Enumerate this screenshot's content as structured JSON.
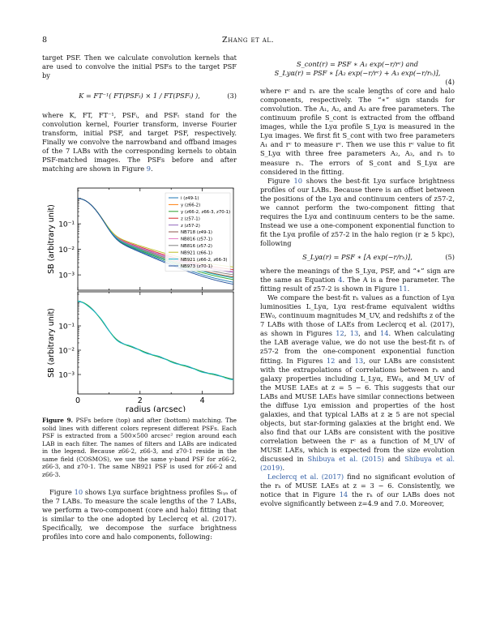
{
  "header": {
    "page_number": "8",
    "running_head": "Zhang et al."
  },
  "left": {
    "p1": "target PSF. Then we calculate convolution kernels that are used to convolve the initial PSFs to the target PSF by",
    "eq3": "K = FT⁻¹( FT(PSFₜ) × 1 / FT(PSFᵢ) ),",
    "eq3_num": "(3)",
    "p2": "where K, FT, FT⁻¹, PSFᵢ, and PSFₜ stand for the convolution kernel, Fourier transform, inverse Fourier transform, initial PSF, and target PSF, respectively. Finally we convolve the narrowband and offband images of the 7 LABs with the corresponding kernels to obtain PSF-matched images. The PSFs before and after matching are shown in Figure ",
    "p2_link": "9",
    "p2_end": ".",
    "caption_label": "Figure 9.",
    "caption_text": " PSFs before (top) and after (bottom) matching. The solid lines with different colors represent different PSFs. Each PSF is extracted from a 500×500 arcsec² region around each LAB in each filter. The names of filters and LABs are indicated in the legend. Because z66-2, z66-3, and z70-1 reside in the same field (COSMOS), we use the same y-band PSF for z66-2, z66-3, and z70-1. The same NB921 PSF is used for z66-2 and z66-3.",
    "p3_a": "Figure ",
    "p3_link": "10",
    "p3_b": " shows Lyα surface brightness profiles Sₗᵧₐ of the 7 LABs. To measure the scale lengths of the 7 LABs, we perform a two-component (core and halo) fitting that is similar to the one adopted by Leclercq et al. (2017). Specifically, we decompose the surface brightness profiles into core and halo components, following:"
  },
  "right": {
    "eq4_line1": "S_cont(r) = PSF ∗ A₁ exp(−r/rᶜ) and",
    "eq4_line2": "S_Lyα(r) = PSF ∗ [A₂ exp(−r/rᶜ) + A₃ exp(−r/rₕ)],",
    "eq4_num": "(4)",
    "p1": "where rᶜ and rₕ are the scale lengths of core and halo components, respectively. The “∗” sign stands for convolution. The A₁, A₂, and A₃ are free parameters. The continuum profile S_cont is extracted from the offband images, while the Lyα profile S_Lyα is measured in the Lyα images. We first fit S_cont with two free parameters A₁ and rᶜ to measure rᶜ. Then we use this rᶜ value to fit S_Lyα with three free parameters A₂, A₃, and rₕ to measure rₕ. The errors of S_cont and S_Lyα are considered in the fitting.",
    "p2_a": "Figure ",
    "p2_link": "10",
    "p2_b": " shows the best-fit Lyα surface brightness profiles of our LABs. Because there is an offset between the positions of the Lyα and continuum centers of z57-2, we cannot perform the two-component fitting that requires the Lyα and continuum centers to be the same. Instead we use a one-component exponential function to fit the Lyα profile of z57-2 in the halo region (r ≳ 5 kpc), following",
    "eq5": "S_Lyα(r) = PSF ∗ [A exp(−r/rₕ)],",
    "eq5_num": "(5)",
    "p3_a": "where the meanings of the S_Lyα, PSF, and “∗” sign are the same as Equation ",
    "p3_link1": "4",
    "p3_b": ". The A is a free parameter. The fitting result of z57-2 is shown in Figure ",
    "p3_link2": "11",
    "p3_c": ".",
    "p4_a": "We compare the best-fit rₕ values as a function of Lyα luminosities L_Lyα, Lyα rest-frame equivalent widths EW₀, continuum magnitudes M_UV, and redshifts z of the 7 LABs with those of LAEs from Leclercq et al. (2017), as shown in Figures ",
    "p4_l1": "12",
    "p4_s1": ", ",
    "p4_l2": "13",
    "p4_s2": ", and ",
    "p4_l3": "14",
    "p4_b": ". When calculating the LAB average value, we do not use the best-fit rₕ of z57-2 from the one-component exponential function fitting. In Figures ",
    "p4_l4": "12",
    "p4_s3": " and ",
    "p4_l5": "13",
    "p4_c": ", our LABs are consistent with the extrapolations of correlations between rₕ and galaxy properties including L_Lyα, EW₀, and M_UV of the MUSE LAEs at z = 5 − 6. This suggests that our LABs and MUSE LAEs have similar connections between the diffuse Lyα emission and properties of the host galaxies, and that typical LABs at z ≳ 5 are not special objects, but star-forming galaxies at the bright end. We also find that our LABs are consistent with the positive correlation between the rᶜ as a function of M_UV of MUSE LAEs, which is expected from the size evolution discussed in ",
    "p4_l6": "Shibuya et al. (2015)",
    "p4_s4": " and ",
    "p4_l7": "Shibuya et al. (2019)",
    "p4_d": ".",
    "p5_l": "Leclercq et al. (2017)",
    "p5_a": " find no significant evolution of the rₕ of MUSE LAEs at z = 3 − 6. Consistently, we notice that in Figure ",
    "p5_l2": "14",
    "p5_b": " the rₕ of our LABs does not evolve significantly between z=4.9 and 7.0. Moreover,"
  },
  "chart_data": [
    {
      "type": "line",
      "panel": "top",
      "xlabel": "",
      "ylabel": "SB (arbitrary unit)",
      "xlim": [
        0,
        5
      ],
      "ylim_log10": [
        -3.6,
        0.4
      ],
      "yscale": "log",
      "yticks": [
        "10⁻¹",
        "10⁻²",
        "10⁻³"
      ],
      "legend_position": "top-right",
      "series": [
        {
          "name": "i (z49-1)",
          "color": "#1f77b4",
          "decay": 1.05,
          "floor": 0.0003
        },
        {
          "name": "y (z66-2)",
          "color": "#ff7f0e",
          "decay": 0.98,
          "floor": 0.0005
        },
        {
          "name": "y (z66-2, z66-3, z70-1)",
          "color": "#2ca02c",
          "decay": 1.02,
          "floor": 0.0004
        },
        {
          "name": "z (z57-1)",
          "color": "#d62728",
          "decay": 0.9,
          "floor": 0.0011
        },
        {
          "name": "z (z57-2)",
          "color": "#9467bd",
          "decay": 0.94,
          "floor": 0.00085
        },
        {
          "name": "NB718 (z49-1)",
          "color": "#8c564b",
          "decay": 1.0,
          "floor": 0.00055
        },
        {
          "name": "NB816 (z57-1)",
          "color": "#e377c2",
          "decay": 0.92,
          "floor": 0.0009
        },
        {
          "name": "NB816 (z57-2)",
          "color": "#7f7f7f",
          "decay": 0.96,
          "floor": 0.00065
        },
        {
          "name": "NB921 (z66-1)",
          "color": "#bcbd22",
          "decay": 0.86,
          "floor": 0.0014
        },
        {
          "name": "NB921 (z66-2, z66-3)",
          "color": "#17becf",
          "decay": 0.99,
          "floor": 0.00045
        },
        {
          "name": "NB973 (z70-1)",
          "color": "#1f4e9a",
          "decay": 1.08,
          "floor": 0.00025
        }
      ]
    },
    {
      "type": "line",
      "panel": "bottom",
      "xlabel": "radius (arcsec)",
      "ylabel": "SB (arbitrary unit)",
      "xlim": [
        0,
        5
      ],
      "xticks": [
        "0",
        "2",
        "4"
      ],
      "ylim_log10": [
        -3.8,
        0.4
      ],
      "yscale": "log",
      "yticks": [
        "10⁻¹",
        "10⁻²",
        "10⁻³"
      ],
      "series": [
        {
          "color": "#1f77b4",
          "decay": 0.97,
          "floor": 0.0003,
          "ripple": 0.0
        },
        {
          "color": "#2ca02c",
          "decay": 0.97,
          "floor": 0.0003,
          "ripple": 0.04
        },
        {
          "color": "#17becf",
          "decay": 0.97,
          "floor": 0.0003,
          "ripple": 0.08
        }
      ]
    }
  ]
}
